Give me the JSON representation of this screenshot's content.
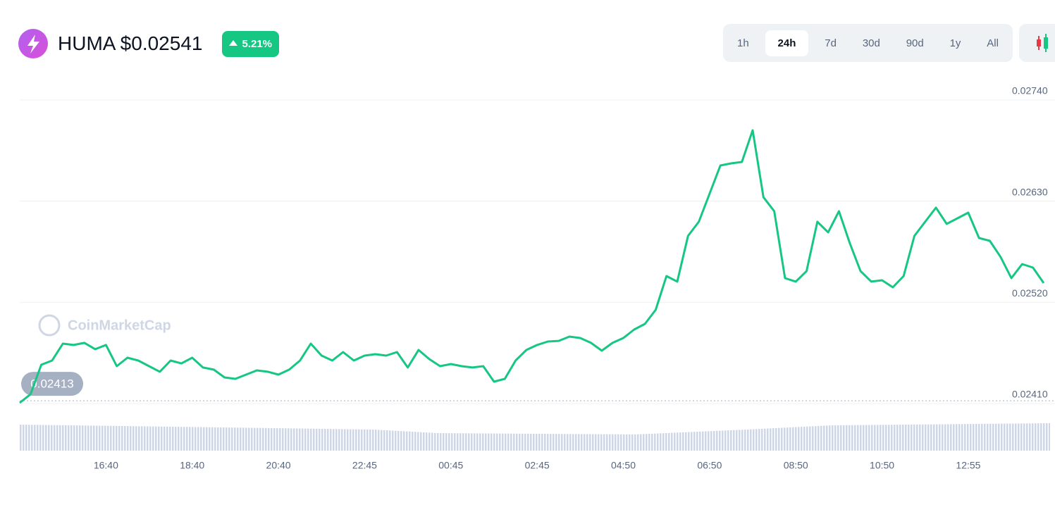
{
  "chart_data": {
    "type": "line",
    "title": "HUMA $0.02541",
    "change": "5.21%",
    "watermark": "CoinMarketCap",
    "ranges": [
      "1h",
      "24h",
      "7d",
      "30d",
      "90d",
      "1y",
      "All"
    ],
    "active_range": "24h",
    "color": "#16c784",
    "grid": true,
    "baseline": 0.02413,
    "ylim": [
      0.0241,
      0.0274
    ],
    "yticks": [
      {
        "value": 0.0241,
        "label": "0.02410"
      },
      {
        "value": 0.0252,
        "label": "0.02520"
      },
      {
        "value": 0.0263,
        "label": "0.02630"
      },
      {
        "value": 0.0274,
        "label": "0.02740"
      }
    ],
    "categories": [
      null,
      null,
      null,
      null,
      null,
      null,
      null,
      null,
      "16:40",
      null,
      null,
      null,
      null,
      null,
      null,
      null,
      "18:40",
      null,
      null,
      null,
      null,
      null,
      null,
      null,
      "20:40",
      null,
      null,
      null,
      null,
      null,
      null,
      null,
      "22:45",
      null,
      null,
      null,
      null,
      null,
      null,
      null,
      "00:45",
      null,
      null,
      null,
      null,
      null,
      null,
      null,
      "02:45",
      null,
      null,
      null,
      null,
      null,
      null,
      null,
      "04:50",
      null,
      null,
      null,
      null,
      null,
      null,
      null,
      "06:50",
      null,
      null,
      null,
      null,
      null,
      null,
      null,
      "08:50",
      null,
      null,
      null,
      null,
      null,
      null,
      null,
      "10:50",
      null,
      null,
      null,
      null,
      null,
      null,
      null,
      "12:55",
      null,
      null,
      null,
      null,
      null,
      null,
      null
    ],
    "values": [
      0.024108,
      0.0242,
      0.024521,
      0.024567,
      0.024751,
      0.024736,
      0.024759,
      0.02469,
      0.024736,
      0.024506,
      0.024598,
      0.024567,
      0.024506,
      0.024445,
      0.024567,
      0.024536,
      0.024598,
      0.024491,
      0.024468,
      0.024383,
      0.024368,
      0.024414,
      0.02446,
      0.024445,
      0.024414,
      0.024468,
      0.024567,
      0.024751,
      0.024621,
      0.024567,
      0.024659,
      0.024567,
      0.024621,
      0.024636,
      0.024621,
      0.024659,
      0.024491,
      0.024682,
      0.024582,
      0.024506,
      0.024529,
      0.024506,
      0.024491,
      0.024506,
      0.024337,
      0.024368,
      0.024567,
      0.024682,
      0.024736,
      0.024774,
      0.024781,
      0.024827,
      0.024812,
      0.024759,
      0.024674,
      0.024759,
      0.024812,
      0.024904,
      0.024965,
      0.025118,
      0.025486,
      0.025425,
      0.025922,
      0.026076,
      0.026382,
      0.026688,
      0.026711,
      0.026726,
      0.027071,
      0.026343,
      0.026191,
      0.025463,
      0.025425,
      0.02554,
      0.026076,
      0.025961,
      0.026191,
      0.025846,
      0.02554,
      0.025425,
      0.02544,
      0.025363,
      0.025486,
      0.025922,
      0.026076,
      0.026229,
      0.026053,
      0.026114,
      0.026175,
      0.025899,
      0.025869,
      0.025693,
      0.025463,
      0.025616,
      0.025578,
      0.025409
    ]
  }
}
